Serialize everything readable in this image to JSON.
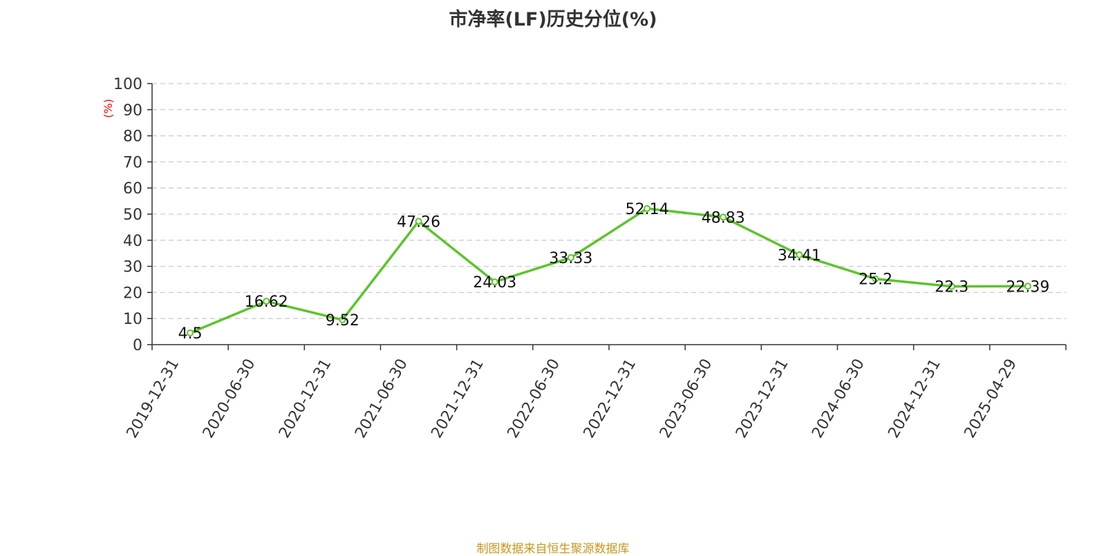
{
  "chart_data": {
    "type": "line",
    "title": "市净率(LF)历史分位(%)",
    "ylabel": "(%)",
    "xlabel": "",
    "ylim": [
      0,
      100
    ],
    "yticks": [
      0,
      10,
      20,
      30,
      40,
      50,
      60,
      70,
      80,
      90,
      100
    ],
    "grid": true,
    "categories": [
      "2019-12-31",
      "2020-06-30",
      "2020-12-31",
      "2021-06-30",
      "2021-12-31",
      "2022-06-30",
      "2022-12-31",
      "2023-06-30",
      "2023-12-31",
      "2024-06-30",
      "2024-12-31",
      "2025-04-29"
    ],
    "series": [
      {
        "values": [
          4.5,
          16.62,
          9.52,
          47.26,
          24.03,
          33.33,
          52.14,
          48.83,
          34.41,
          25.2,
          22.3,
          22.39
        ],
        "labels": [
          "4.5",
          "16.62",
          "9.52",
          "47.26",
          "24.03",
          "33.33",
          "52.14",
          "48.83",
          "34.41",
          "25.2",
          "22.3",
          "22.39"
        ],
        "color": "#5ac529"
      }
    ],
    "colors": {
      "line": "#5ac529",
      "axis": "#333333",
      "grid": "#cccccc",
      "ylabel": "#ff0000"
    }
  },
  "footer": {
    "source": "制图数据来自恒生聚源数据库"
  }
}
